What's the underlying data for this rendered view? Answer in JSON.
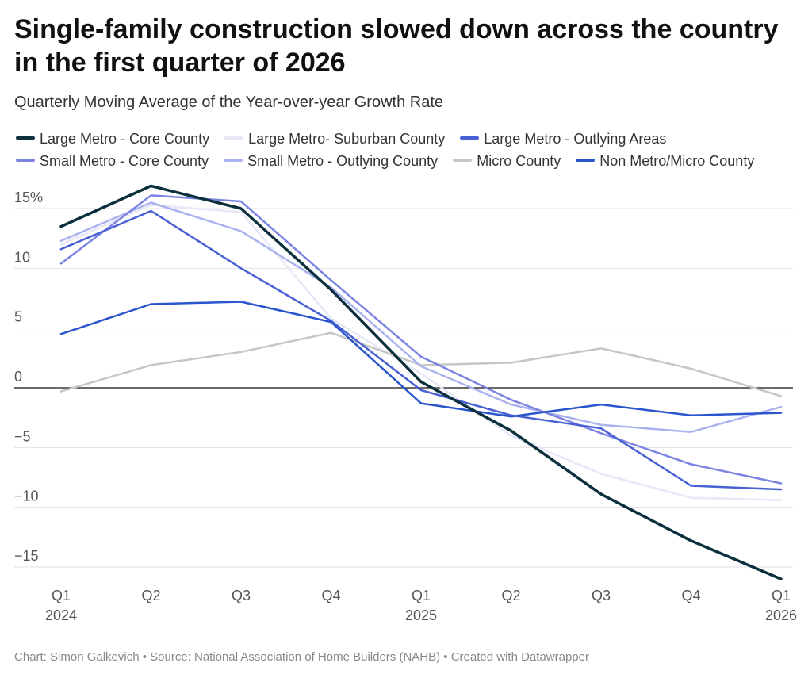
{
  "title": "Single-family construction slowed down across the country in the first quarter of 2026",
  "subtitle": "Quarterly Moving Average of the Year-over-year Growth Rate",
  "footer": "Chart: Simon Galkevich • Source: National Association of Home Builders (NAHB) • Created with Datawrapper",
  "chart_data": {
    "type": "line",
    "x": [
      "Q1 2024",
      "Q2 2024",
      "Q3 2024",
      "Q4 2024",
      "Q1 2025",
      "Q2 2025",
      "Q3 2025",
      "Q4 2025",
      "Q1 2026"
    ],
    "x_tick_labels": [
      {
        "top": "Q1",
        "bottom": "2024"
      },
      {
        "top": "Q2",
        "bottom": ""
      },
      {
        "top": "Q3",
        "bottom": ""
      },
      {
        "top": "Q4",
        "bottom": ""
      },
      {
        "top": "Q1",
        "bottom": "2025"
      },
      {
        "top": "Q2",
        "bottom": ""
      },
      {
        "top": "Q3",
        "bottom": ""
      },
      {
        "top": "Q4",
        "bottom": ""
      },
      {
        "top": "Q1",
        "bottom": "2026"
      }
    ],
    "y_ticks": [
      15,
      10,
      5,
      0,
      -5,
      -10,
      -15
    ],
    "y_tick_labels": [
      "15%",
      "10",
      "5",
      "0",
      "−5",
      "−10",
      "−15"
    ],
    "ylim": [
      -16.5,
      17
    ],
    "grid": true,
    "legend_position": "top",
    "series": [
      {
        "name": "Large Metro - Core County",
        "color": "#0b2f3d",
        "width": 3.5,
        "values": [
          13.5,
          16.9,
          15.0,
          8.2,
          0.5,
          -3.6,
          -8.9,
          -12.8,
          -16.0
        ]
      },
      {
        "name": "Large Metro- Suburban County",
        "color": "#e6e7f7",
        "width": 2.5,
        "values": [
          12.0,
          15.3,
          14.7,
          5.8,
          1.2,
          -4.0,
          -7.2,
          -9.2,
          -9.4
        ]
      },
      {
        "name": "Large Metro - Outlying Areas",
        "color": "#4760d4",
        "width": 2.5,
        "values": [
          11.6,
          14.8,
          10.0,
          5.6,
          -0.2,
          -2.3,
          -3.4,
          -8.2,
          -8.5
        ]
      },
      {
        "name": "Small Metro - Core County",
        "color": "#7b84e3",
        "width": 2.5,
        "values": [
          10.4,
          16.1,
          15.6,
          9.0,
          2.6,
          -1.0,
          -3.8,
          -6.4,
          -8.0
        ]
      },
      {
        "name": "Small Metro - Outlying County",
        "color": "#aab3ef",
        "width": 2.5,
        "values": [
          12.3,
          15.5,
          13.1,
          8.4,
          1.8,
          -1.4,
          -3.1,
          -3.7,
          -1.6
        ]
      },
      {
        "name": "Micro County",
        "color": "#c6c6c6",
        "width": 2.5,
        "values": [
          -0.3,
          1.9,
          3.0,
          4.6,
          1.9,
          2.1,
          3.3,
          1.6,
          -0.7
        ]
      },
      {
        "name": "Non Metro/Micro County",
        "color": "#2a55cc",
        "width": 2.5,
        "values": [
          4.5,
          7.0,
          7.2,
          5.5,
          -1.3,
          -2.4,
          -1.4,
          -2.3,
          -2.1
        ]
      }
    ]
  }
}
